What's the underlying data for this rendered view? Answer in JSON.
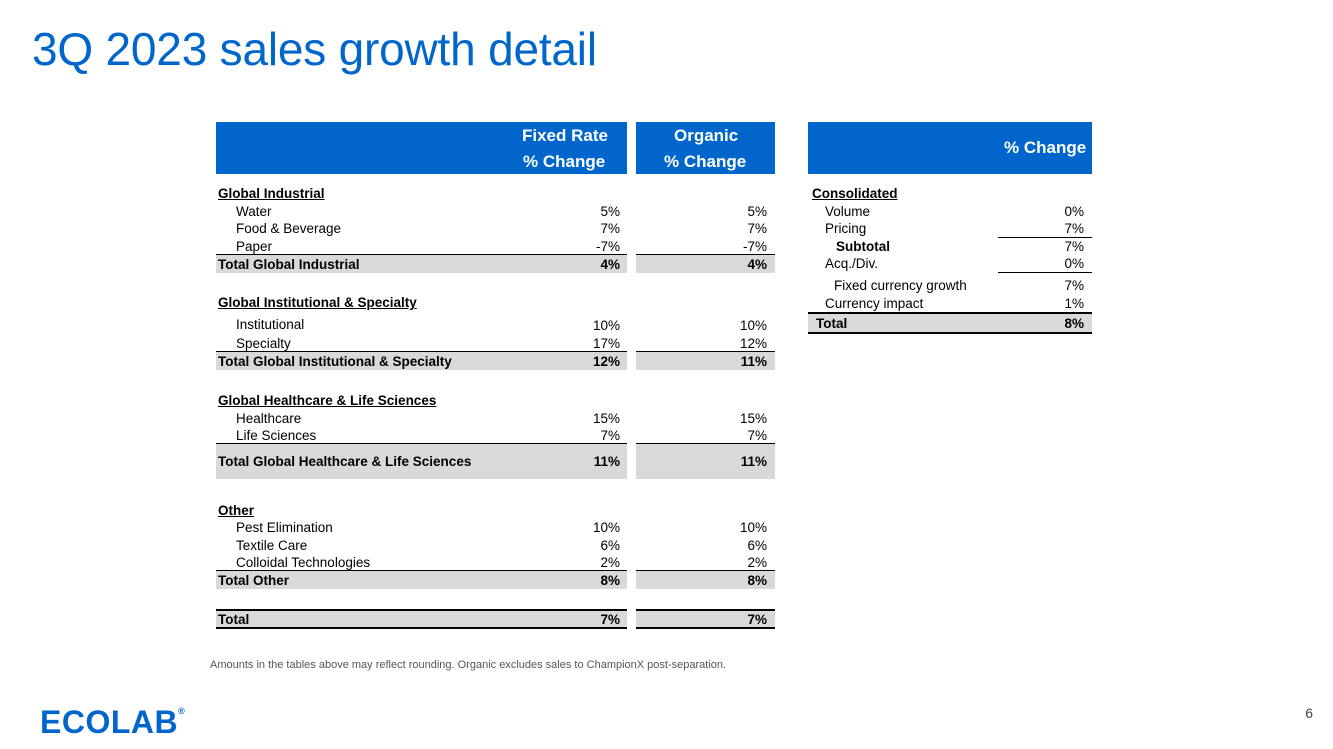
{
  "title": "3Q 2023 sales growth detail",
  "headers": {
    "fixed_rate_1": "Fixed Rate",
    "fixed_rate_2": "% Change",
    "organic_1": "Organic",
    "organic_2": "% Change",
    "right": "% Change"
  },
  "left_table": {
    "gi_title": "Global Industrial",
    "water": {
      "label": "Water",
      "fixed": "5%",
      "organic": "5%"
    },
    "food": {
      "label": "Food & Beverage",
      "fixed": "7%",
      "organic": "7%"
    },
    "paper": {
      "label": "Paper",
      "fixed": "-7%",
      "organic": "-7%"
    },
    "gi_total": {
      "label": "Total Global Industrial",
      "fixed": "4%",
      "organic": "4%"
    },
    "gis_title": "Global Institutional & Specialty",
    "institutional": {
      "label": "Institutional",
      "fixed": "10%",
      "organic": "10%"
    },
    "specialty": {
      "label": "Specialty",
      "fixed": "17%",
      "organic": "12%"
    },
    "gis_total": {
      "label": "Total Global Institutional & Specialty",
      "fixed": "12%",
      "organic": "11%"
    },
    "ghl_title": "Global Healthcare & Life Sciences",
    "healthcare": {
      "label": "Healthcare",
      "fixed": "15%",
      "organic": "15%"
    },
    "lifesci": {
      "label": "Life Sciences",
      "fixed": "7%",
      "organic": "7%"
    },
    "ghl_total": {
      "label": "Total Global Healthcare & Life Sciences",
      "fixed": "11%",
      "organic": "11%"
    },
    "other_title": "Other",
    "pest": {
      "label": "Pest Elimination",
      "fixed": "10%",
      "organic": "10%"
    },
    "textile": {
      "label": "Textile Care",
      "fixed": "6%",
      "organic": "6%"
    },
    "colloidal": {
      "label": "Colloidal Technologies",
      "fixed": "2%",
      "organic": "2%"
    },
    "other_total": {
      "label": "Total Other",
      "fixed": "8%",
      "organic": "8%"
    },
    "grand_total": {
      "label": "Total",
      "fixed": "7%",
      "organic": "7%"
    }
  },
  "right_table": {
    "title": "Consolidated",
    "volume": {
      "label": "Volume",
      "value": "0%"
    },
    "pricing": {
      "label": "Pricing",
      "value": "7%"
    },
    "subtotal": {
      "label": "Subtotal",
      "value": "7%"
    },
    "acq": {
      "label": "Acq./Div.",
      "value": "0%"
    },
    "fixed_growth": {
      "label": "Fixed currency growth",
      "value": "7%"
    },
    "currency": {
      "label": "Currency impact",
      "value": "1%"
    },
    "total": {
      "label": "Total",
      "value": "8%"
    }
  },
  "footnote": "Amounts in the tables above may reflect rounding.  Organic excludes sales to ChampionX post-separation.",
  "page_number": "6",
  "logo_text": "ECOLAB",
  "logo_mark": "®"
}
